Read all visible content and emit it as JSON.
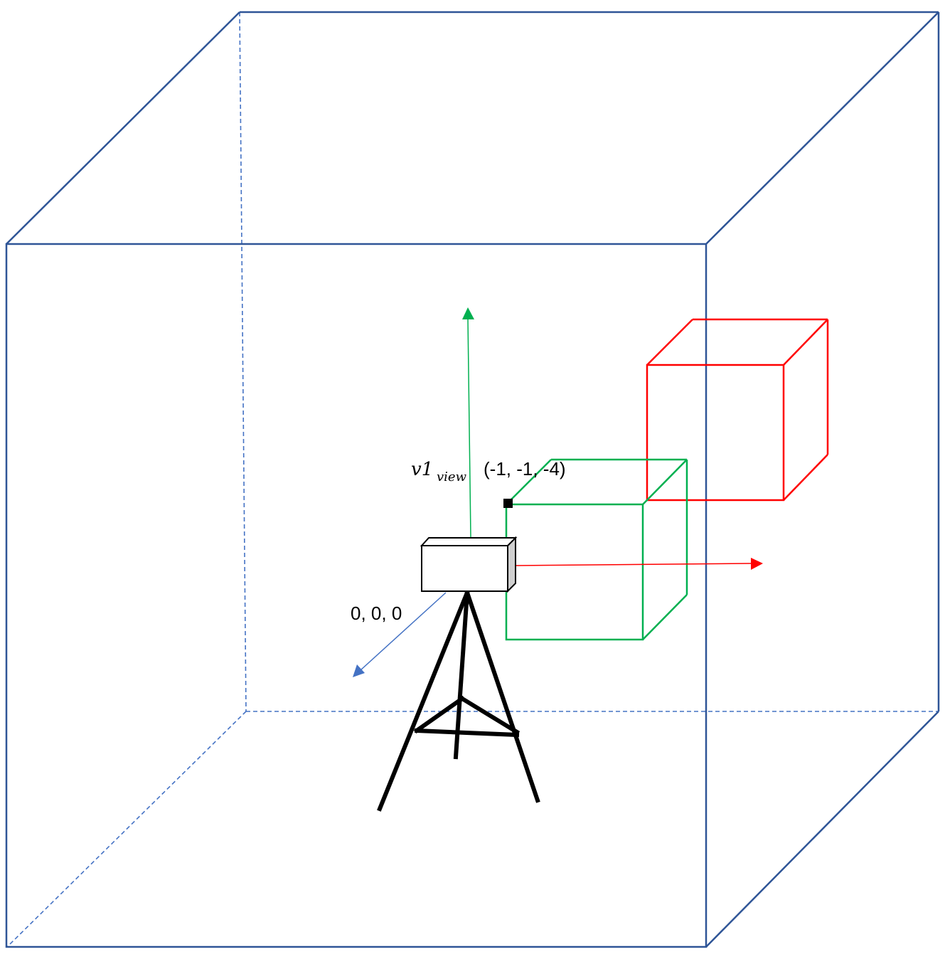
{
  "labels": {
    "origin": "0, 0, 0",
    "vertex_main": "v1",
    "vertex_subscript": "view",
    "vertex_coords": "(-1, -1, -4)"
  },
  "colors": {
    "room": "#2F5597",
    "room_hidden": "#4472C4",
    "green_cube": "#00B050",
    "red_cube": "#FF0000",
    "x_axis": "#FF0000",
    "y_axis": "#00B050",
    "z_axis": "#4472C4",
    "tripod": "#000000",
    "camera_side": "#D0D0D0"
  }
}
